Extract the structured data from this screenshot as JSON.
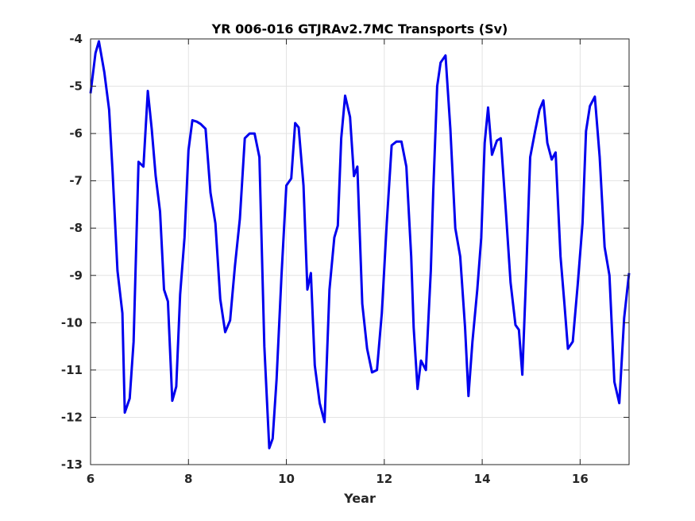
{
  "chart_data": {
    "type": "line",
    "title": "YR 006-016 GTJRAv2.7MC Transports (Sv)",
    "xlabel": "Year",
    "ylabel": "",
    "xlim": [
      6,
      17
    ],
    "ylim": [
      -13,
      -4
    ],
    "xticks": [
      "6",
      "8",
      "10",
      "12",
      "14",
      "16"
    ],
    "yticks": [
      "-4",
      "-5",
      "-6",
      "-7",
      "-8",
      "-9",
      "-10",
      "-11",
      "-12",
      "-13"
    ],
    "grid": true,
    "line_color": "#0000ee",
    "series": [
      {
        "x": [
          6.0,
          6.1,
          6.17,
          6.28,
          6.38,
          6.45,
          6.55,
          6.65,
          6.7,
          6.8,
          6.88,
          6.98,
          7.08,
          7.17,
          7.25,
          7.33,
          7.42,
          7.5,
          7.58,
          7.67,
          7.75,
          7.83,
          7.92,
          8.0,
          8.08,
          8.17,
          8.25,
          8.35,
          8.45,
          8.55,
          8.65,
          8.75,
          8.85,
          8.95,
          9.05,
          9.15,
          9.25,
          9.35,
          9.45,
          9.55,
          9.65,
          9.72,
          9.8,
          9.9,
          10.0,
          10.1,
          10.18,
          10.25,
          10.35,
          10.43,
          10.5,
          10.58,
          10.68,
          10.78,
          10.88,
          10.98,
          11.05,
          11.12,
          11.2,
          11.3,
          11.38,
          11.45,
          11.55,
          11.65,
          11.75,
          11.85,
          11.95,
          12.05,
          12.15,
          12.25,
          12.35,
          12.45,
          12.55,
          12.6,
          12.68,
          12.75,
          12.85,
          12.95,
          13.0,
          13.08,
          13.15,
          13.25,
          13.35,
          13.45,
          13.55,
          13.65,
          13.72,
          13.8,
          13.9,
          13.98,
          14.05,
          14.12,
          14.2,
          14.3,
          14.38,
          14.48,
          14.58,
          14.68,
          14.75,
          14.82,
          14.9,
          14.98,
          15.08,
          15.17,
          15.25,
          15.33,
          15.42,
          15.5,
          15.6,
          15.68,
          15.75,
          15.85,
          15.95,
          16.05,
          16.12,
          16.2,
          16.3,
          16.4,
          16.5,
          16.6,
          16.7,
          16.8,
          16.9,
          17.0
        ],
        "values": [
          -5.15,
          -4.3,
          -4.05,
          -4.7,
          -5.5,
          -6.8,
          -8.9,
          -9.8,
          -11.9,
          -11.6,
          -10.4,
          -6.6,
          -6.7,
          -5.1,
          -5.9,
          -6.9,
          -7.65,
          -9.3,
          -9.55,
          -11.65,
          -11.35,
          -9.4,
          -8.2,
          -6.35,
          -5.72,
          -5.75,
          -5.8,
          -5.9,
          -7.25,
          -7.9,
          -9.5,
          -10.2,
          -9.95,
          -8.8,
          -7.8,
          -6.1,
          -6.0,
          -6.0,
          -6.5,
          -10.5,
          -12.65,
          -12.45,
          -11.2,
          -9.0,
          -7.1,
          -6.95,
          -5.78,
          -5.87,
          -7.1,
          -9.3,
          -8.95,
          -10.9,
          -11.7,
          -12.1,
          -9.3,
          -8.2,
          -7.95,
          -6.1,
          -5.2,
          -5.65,
          -6.9,
          -6.7,
          -9.6,
          -10.55,
          -11.05,
          -11.0,
          -9.8,
          -7.9,
          -6.25,
          -6.17,
          -6.17,
          -6.7,
          -8.6,
          -10.1,
          -11.4,
          -10.8,
          -11.0,
          -8.9,
          -7.2,
          -5.0,
          -4.5,
          -4.35,
          -5.9,
          -8.0,
          -8.6,
          -10.1,
          -11.55,
          -10.4,
          -9.3,
          -8.2,
          -6.2,
          -5.45,
          -6.45,
          -6.15,
          -6.1,
          -7.6,
          -9.15,
          -10.05,
          -10.15,
          -11.1,
          -8.9,
          -6.5,
          -5.95,
          -5.5,
          -5.3,
          -6.2,
          -6.55,
          -6.4,
          -8.6,
          -9.6,
          -10.55,
          -10.4,
          -9.2,
          -7.9,
          -5.95,
          -5.42,
          -5.22,
          -6.5,
          -8.4,
          -9.0,
          -11.25,
          -11.7,
          -9.9,
          -8.95
        ]
      }
    ]
  }
}
